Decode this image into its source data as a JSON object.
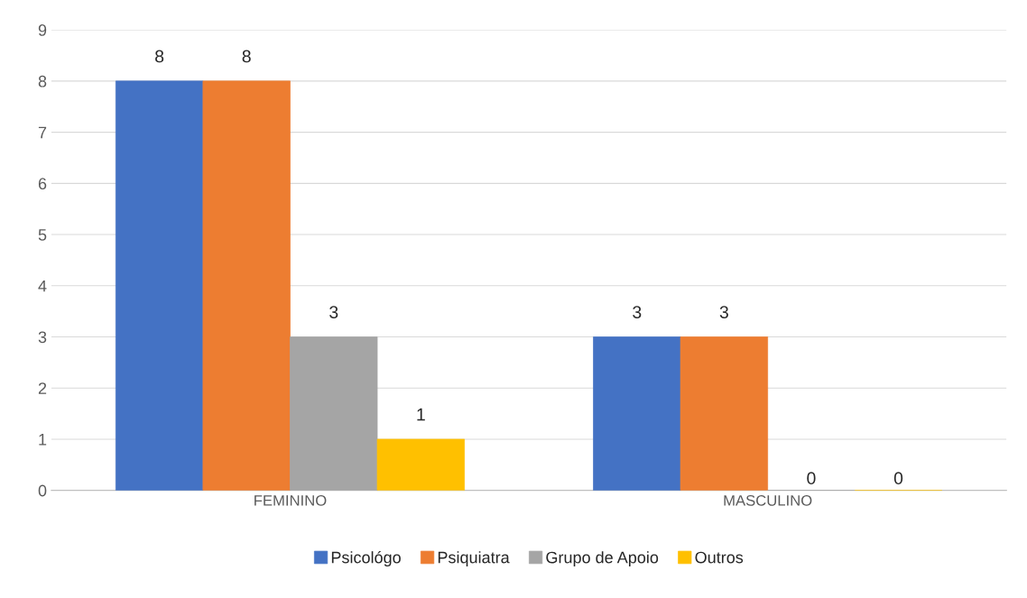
{
  "chart_data": {
    "type": "bar",
    "categories": [
      "FEMININO",
      "MASCULINO"
    ],
    "series": [
      {
        "name": "Psicológo",
        "color": "#4472c4",
        "values": [
          8,
          3
        ]
      },
      {
        "name": "Psiquiatra",
        "color": "#ed7d31",
        "values": [
          8,
          3
        ]
      },
      {
        "name": "Grupo de Apoio",
        "color": "#a5a5a5",
        "values": [
          3,
          0
        ]
      },
      {
        "name": "Outros",
        "color": "#ffc000",
        "values": [
          1,
          0
        ]
      }
    ],
    "ylim": [
      0,
      9
    ],
    "yticks": [
      0,
      1,
      2,
      3,
      4,
      5,
      6,
      7,
      8,
      9
    ],
    "grid": "y",
    "legend": "bottom",
    "data_labels": true
  }
}
